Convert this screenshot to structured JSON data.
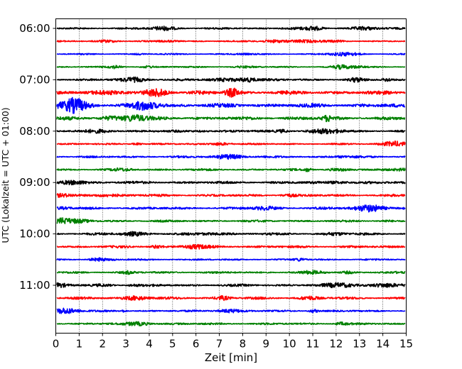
{
  "chart_data": {
    "type": "line",
    "title": "",
    "xlabel": "Zeit  [min]",
    "ylabel": "UTC (Lokalzeit = UTC + 01:00)",
    "xlim": [
      0,
      15
    ],
    "x_ticks": [
      "0",
      "1",
      "2",
      "3",
      "4",
      "5",
      "6",
      "7",
      "8",
      "9",
      "10",
      "11",
      "12",
      "13",
      "14",
      "15"
    ],
    "y_tick_labels": [
      "06:00",
      "07:00",
      "08:00",
      "09:00",
      "10:00",
      "11:00"
    ],
    "x_grid": true,
    "line_start_times": [
      "06:00",
      "06:15",
      "06:30",
      "06:45",
      "07:00",
      "07:15",
      "07:30",
      "07:45",
      "08:00",
      "08:15",
      "08:30",
      "08:45",
      "09:00",
      "09:15",
      "09:30",
      "09:45",
      "10:00",
      "10:15",
      "10:30",
      "10:45",
      "11:00",
      "11:15",
      "11:30",
      "11:45"
    ],
    "trace_colors": [
      "#000000",
      "#ff0000",
      "#0000ff",
      "#008000"
    ],
    "trace_amplitude_levels": [
      0.7,
      0.55,
      0.5,
      0.55,
      0.9,
      1.4,
      1.5,
      1.3,
      0.9,
      0.6,
      0.8,
      0.8,
      1.0,
      0.9,
      0.9,
      0.8,
      0.9,
      0.9,
      0.6,
      0.8,
      0.9,
      0.9,
      0.7,
      0.8
    ]
  }
}
